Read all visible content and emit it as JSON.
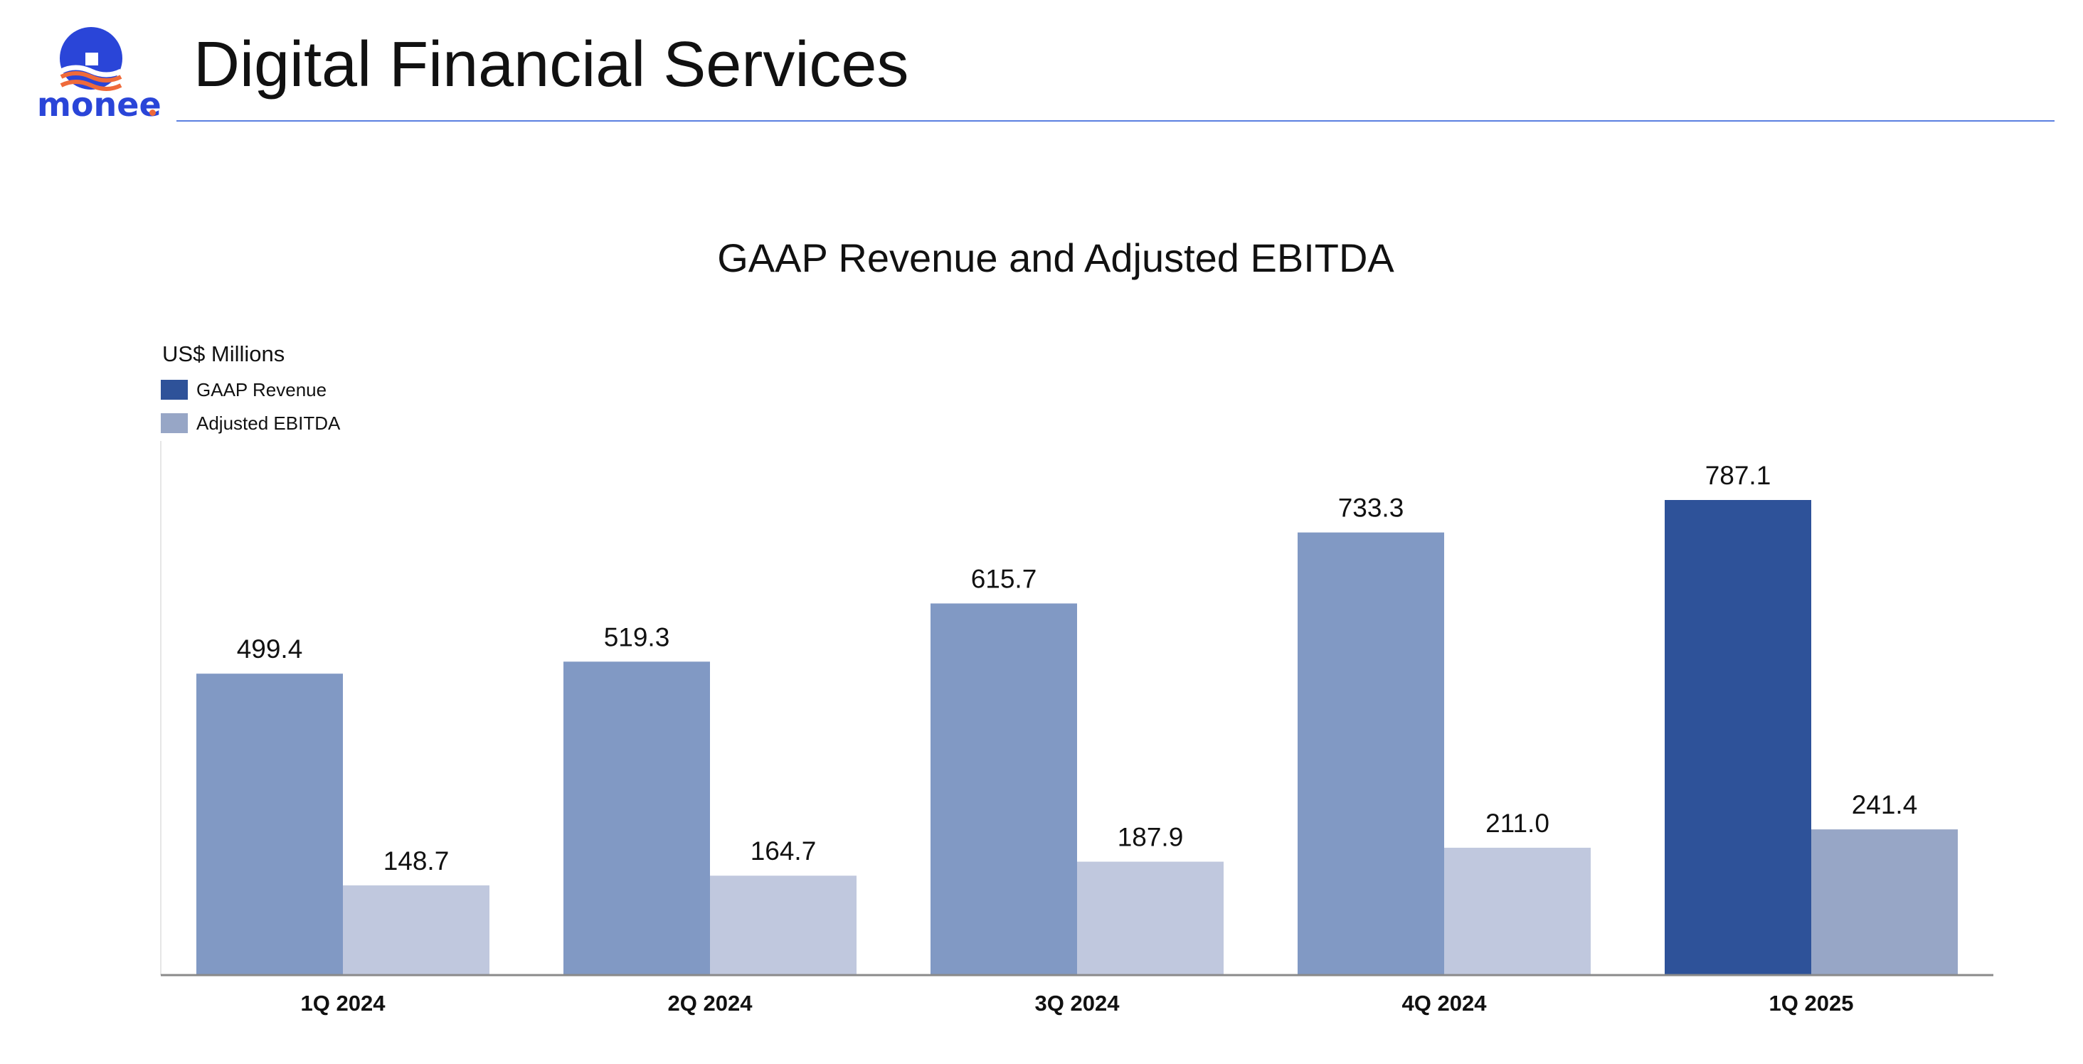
{
  "header": {
    "logo_text": "monee",
    "title": "Digital Financial Services"
  },
  "colors": {
    "gaap_revenue": "#2e5299",
    "gaap_revenue_faded": "#8199c4",
    "adjusted_ebitda": "#97a6c6",
    "adjusted_ebitda_faded": "#c0c8de",
    "header_rule": "#5b7fe0",
    "logo_blue": "#2a45d8",
    "logo_orange": "#ef6a3a"
  },
  "chart_data": {
    "type": "bar",
    "title": "GAAP Revenue and Adjusted EBITDA",
    "unit_label": "US$ Millions",
    "categories": [
      "1Q 2024",
      "2Q 2024",
      "3Q 2024",
      "4Q 2024",
      "1Q 2025"
    ],
    "series": [
      {
        "name": "GAAP Revenue",
        "values": [
          499.4,
          519.3,
          615.7,
          733.3,
          787.1
        ],
        "labels": [
          "499.4",
          "519.3",
          "615.7",
          "733.3",
          "787.1"
        ]
      },
      {
        "name": "Adjusted EBITDA",
        "values": [
          148.7,
          164.7,
          187.9,
          211.0,
          241.4
        ],
        "labels": [
          "148.7",
          "164.7",
          "187.9",
          "211.0",
          "241.4"
        ]
      }
    ],
    "highlighted_category": "1Q 2025",
    "ylim": [
      0,
      880
    ],
    "grid": false,
    "legend_position": "top-left"
  }
}
